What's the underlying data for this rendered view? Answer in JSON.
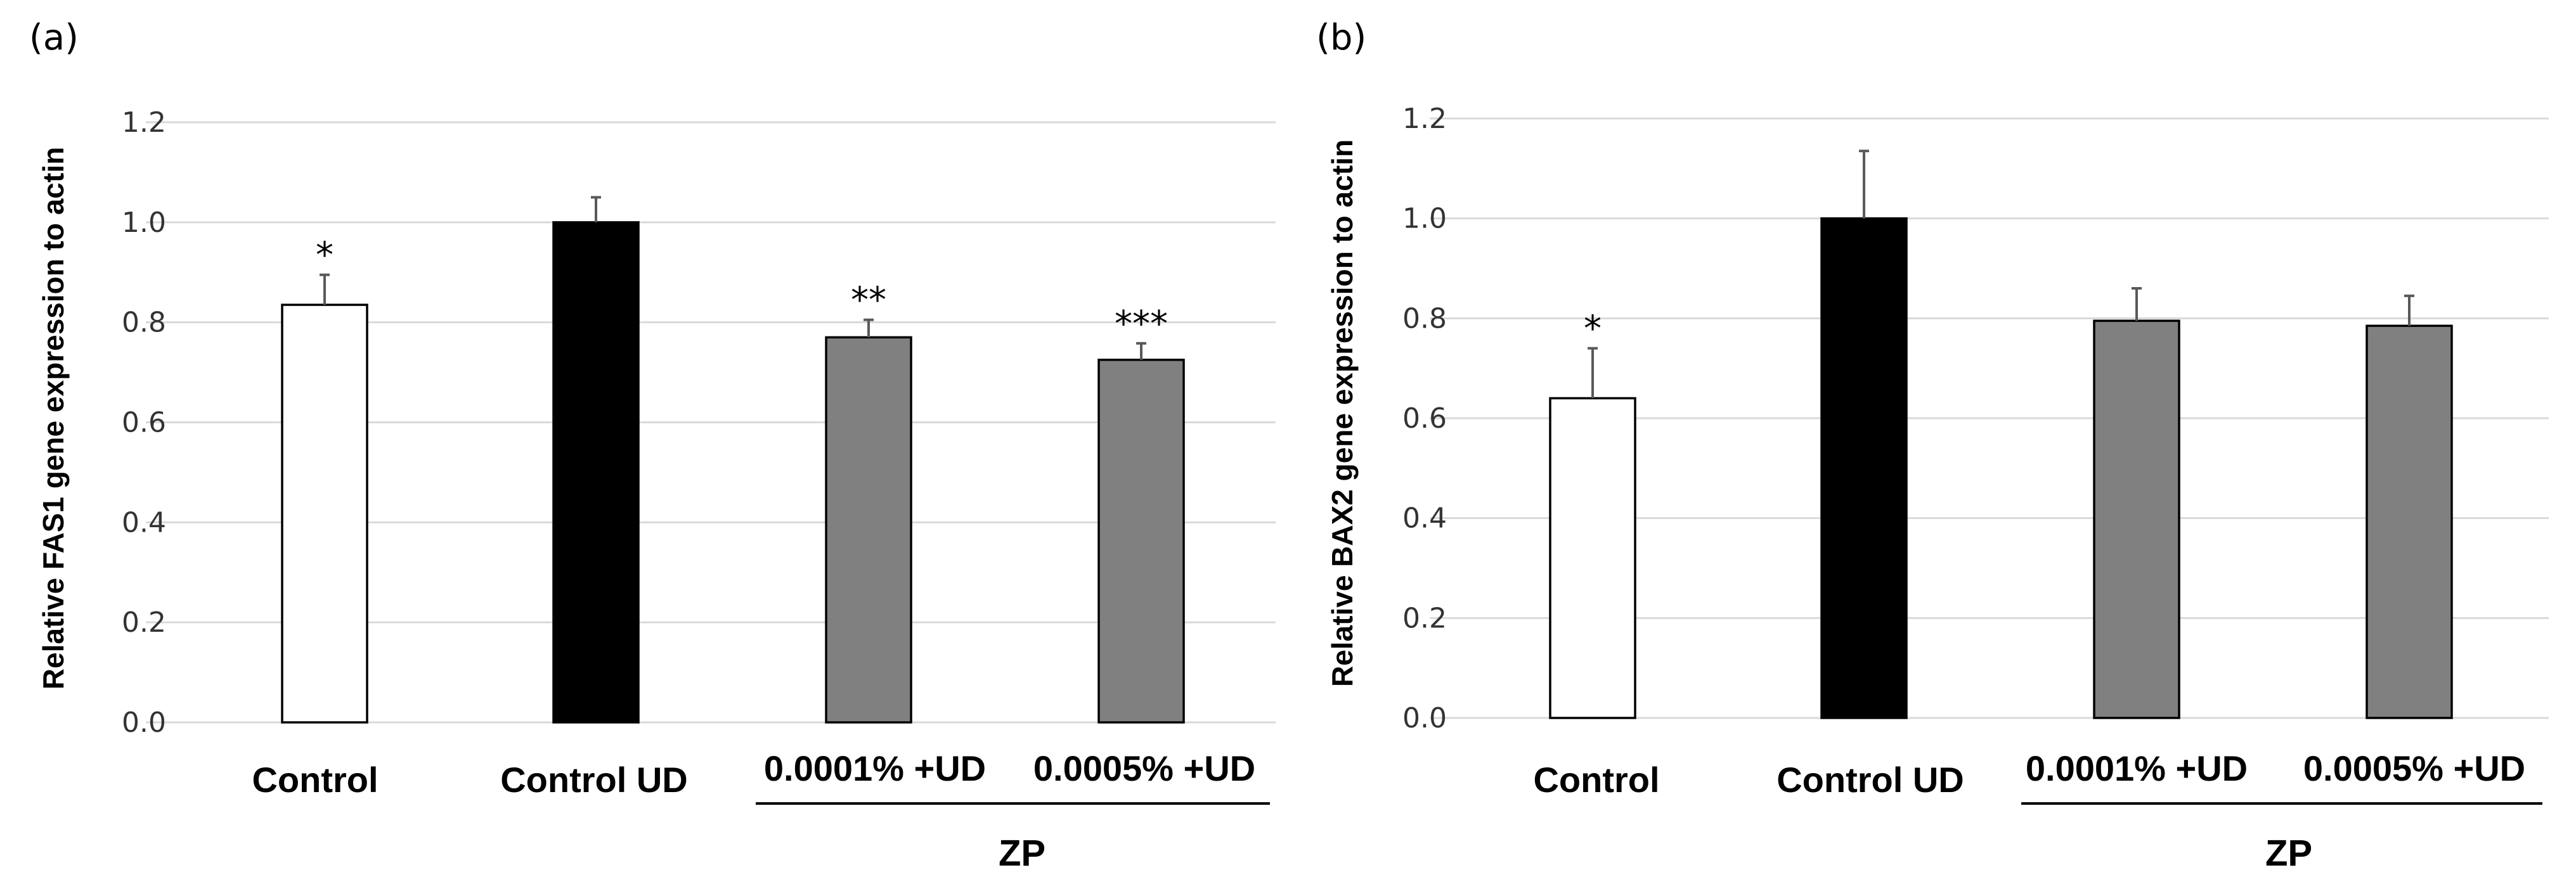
{
  "chart_data": [
    {
      "type": "bar",
      "panel_label": "(a)",
      "ylabel": "Relative FAS1 gene expression to actin",
      "xlabel": "",
      "ylim": [
        0,
        1.2
      ],
      "yticks": [
        "0.0",
        "0.2",
        "0.4",
        "0.6",
        "0.8",
        "1.0",
        "1.2"
      ],
      "grid": true,
      "categories": [
        "Control",
        "Control UD",
        "0.0001% +UD",
        "0.0005% +UD"
      ],
      "values": [
        0.835,
        1.0,
        0.77,
        0.725
      ],
      "errors": [
        0.06,
        0.05,
        0.035,
        0.033
      ],
      "significance": [
        "*",
        "",
        "**",
        "***"
      ],
      "bar_colors": [
        "#ffffff",
        "#000000",
        "#808080",
        "#808080"
      ],
      "group_label": "ZP",
      "group_categories": [
        2,
        3
      ]
    },
    {
      "type": "bar",
      "panel_label": "(b)",
      "ylabel": "Relative BAX2 gene expression to actin",
      "xlabel": "",
      "ylim": [
        0,
        1.2
      ],
      "yticks": [
        "0.0",
        "0.2",
        "0.4",
        "0.6",
        "0.8",
        "1.0",
        "1.2"
      ],
      "grid": true,
      "categories": [
        "Control",
        "Control UD",
        "0.0001% +UD",
        "0.0005% +UD"
      ],
      "values": [
        0.64,
        1.0,
        0.795,
        0.785
      ],
      "errors": [
        0.1,
        0.135,
        0.065,
        0.06
      ],
      "significance": [
        "*",
        "",
        "",
        ""
      ],
      "bar_colors": [
        "#ffffff",
        "#000000",
        "#808080",
        "#808080"
      ],
      "group_label": "ZP",
      "group_categories": [
        2,
        3
      ]
    }
  ]
}
